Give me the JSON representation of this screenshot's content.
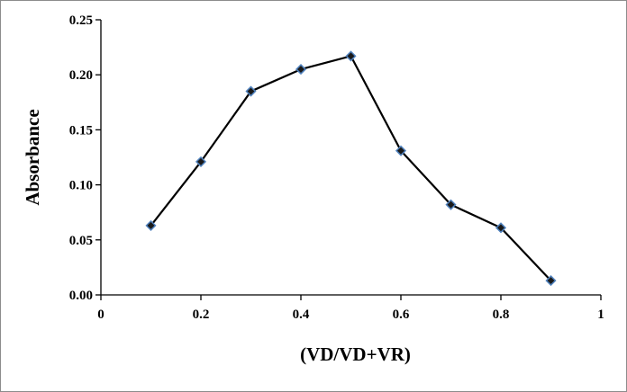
{
  "chart_data": {
    "type": "scatter",
    "xlabel": "(VD/VD+VR)",
    "ylabel": "Absorbance",
    "xlim": [
      0,
      1
    ],
    "ylim": [
      0,
      0.25
    ],
    "x_ticks": [
      0,
      0.2,
      0.4,
      0.6,
      0.8,
      1
    ],
    "x_tick_labels": [
      "0",
      "0.2",
      "0.4",
      "0.6",
      "0.8",
      "1"
    ],
    "y_ticks": [
      0,
      0.05,
      0.1,
      0.15,
      0.2,
      0.25
    ],
    "y_tick_labels": [
      "0.00",
      "0.05",
      "0.10",
      "0.15",
      "0.20",
      "0.25"
    ],
    "grid": false,
    "legend": "none",
    "series": [
      {
        "x": [
          0.1,
          0.2,
          0.3,
          0.4,
          0.5,
          0.6,
          0.7,
          0.8,
          0.9
        ],
        "y": [
          0.063,
          0.121,
          0.185,
          0.205,
          0.217,
          0.131,
          0.082,
          0.061,
          0.013
        ],
        "line_color": "#000000",
        "marker": "diamond",
        "marker_fill": "#1a1a1a",
        "marker_edge": "#4f81bd"
      }
    ]
  }
}
